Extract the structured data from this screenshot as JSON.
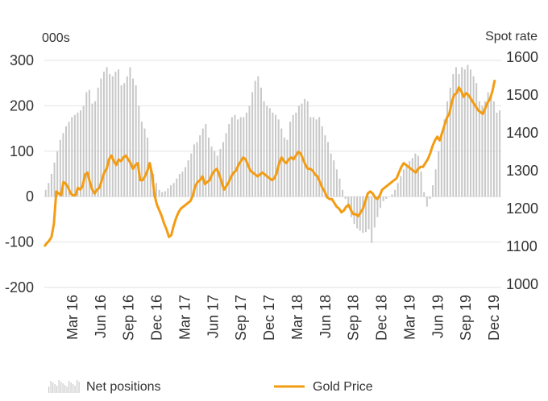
{
  "chart_data": {
    "type": "bar+line",
    "left_axis_unit": "000s",
    "right_axis_unit": "Spot rate",
    "left_ylim": [
      -200,
      300
    ],
    "right_ylim": [
      1000,
      1600
    ],
    "left_ticks": [
      "300",
      "200",
      "100",
      "0",
      "-100",
      "-200"
    ],
    "right_ticks": [
      "1600",
      "1500",
      "1400",
      "1300",
      "1200",
      "1100",
      "1000"
    ],
    "x_labels": [
      "Mar 16",
      "Jun 16",
      "Sep 16",
      "Dec 16",
      "Mar 17",
      "Jun 17",
      "Sep 17",
      "Dec 17",
      "Mar 18",
      "Jun 18",
      "Sep 18",
      "Dec 18",
      "Mar 19",
      "Jun 19",
      "Sep 19",
      "Dec 19"
    ],
    "grid": "horizontal",
    "legend_position": "bottom",
    "series": [
      {
        "name": "Net positions",
        "kind": "bar",
        "axis": "left",
        "color": "#c8c8c8",
        "values": [
          15,
          30,
          50,
          75,
          100,
          125,
          140,
          155,
          165,
          175,
          180,
          185,
          190,
          200,
          230,
          235,
          205,
          210,
          240,
          260,
          275,
          285,
          270,
          265,
          275,
          280,
          245,
          250,
          265,
          285,
          260,
          245,
          200,
          165,
          150,
          130,
          70,
          50,
          30,
          15,
          10,
          12,
          18,
          25,
          30,
          40,
          50,
          55,
          65,
          80,
          95,
          115,
          120,
          135,
          150,
          160,
          130,
          110,
          100,
          90,
          105,
          120,
          140,
          160,
          175,
          180,
          170,
          175,
          175,
          185,
          200,
          230,
          255,
          265,
          240,
          210,
          200,
          195,
          185,
          180,
          170,
          150,
          130,
          125,
          165,
          180,
          185,
          200,
          205,
          215,
          210,
          175,
          175,
          170,
          175,
          155,
          135,
          120,
          95,
          80,
          60,
          40,
          15,
          -5,
          -25,
          -45,
          -60,
          -70,
          -75,
          -80,
          -78,
          -72,
          -102,
          -68,
          -45,
          -25,
          -10,
          -5,
          0,
          5,
          15,
          30,
          45,
          60,
          72,
          78,
          85,
          95,
          90,
          55,
          10,
          -22,
          -5,
          25,
          60,
          100,
          140,
          170,
          210,
          240,
          270,
          285,
          270,
          285,
          280,
          290,
          280,
          265,
          250,
          210,
          200,
          210,
          230,
          220,
          210,
          185,
          190
        ]
      },
      {
        "name": "Gold Price",
        "kind": "line",
        "axis": "right",
        "color": "#f39c12",
        "values": [
          1100,
          1108,
          1115,
          1125,
          1160,
          1245,
          1240,
          1235,
          1270,
          1265,
          1255,
          1240,
          1235,
          1235,
          1255,
          1250,
          1260,
          1290,
          1295,
          1270,
          1250,
          1240,
          1250,
          1255,
          1275,
          1295,
          1305,
          1330,
          1340,
          1325,
          1315,
          1330,
          1325,
          1335,
          1340,
          1330,
          1320,
          1305,
          1315,
          1320,
          1275,
          1275,
          1285,
          1300,
          1320,
          1290,
          1235,
          1210,
          1195,
          1180,
          1160,
          1145,
          1125,
          1130,
          1155,
          1175,
          1190,
          1200,
          1205,
          1210,
          1215,
          1220,
          1235,
          1260,
          1270,
          1275,
          1285,
          1265,
          1270,
          1275,
          1290,
          1300,
          1305,
          1290,
          1270,
          1250,
          1260,
          1270,
          1285,
          1295,
          1300,
          1315,
          1325,
          1335,
          1330,
          1315,
          1300,
          1295,
          1290,
          1285,
          1290,
          1295,
          1290,
          1285,
          1280,
          1275,
          1280,
          1295,
          1320,
          1335,
          1325,
          1320,
          1330,
          1335,
          1330,
          1340,
          1350,
          1345,
          1330,
          1315,
          1305,
          1305,
          1300,
          1290,
          1285,
          1270,
          1255,
          1245,
          1230,
          1225,
          1225,
          1215,
          1205,
          1200,
          1190,
          1195,
          1205,
          1210,
          1195,
          1185,
          1185,
          1180,
          1190,
          1200,
          1220,
          1240,
          1245,
          1240,
          1230,
          1225,
          1235,
          1250,
          1255,
          1260,
          1265,
          1270,
          1275,
          1280,
          1295,
          1310,
          1320,
          1315,
          1310,
          1305,
          1300,
          1295,
          1305,
          1310,
          1310,
          1320,
          1330,
          1345,
          1365,
          1380,
          1390,
          1380,
          1400,
          1420,
          1440,
          1450,
          1480,
          1500,
          1505,
          1520,
          1510,
          1495,
          1505,
          1500,
          1490,
          1480,
          1470,
          1460,
          1455,
          1450,
          1465,
          1480,
          1490,
          1510,
          1540
        ]
      }
    ]
  }
}
